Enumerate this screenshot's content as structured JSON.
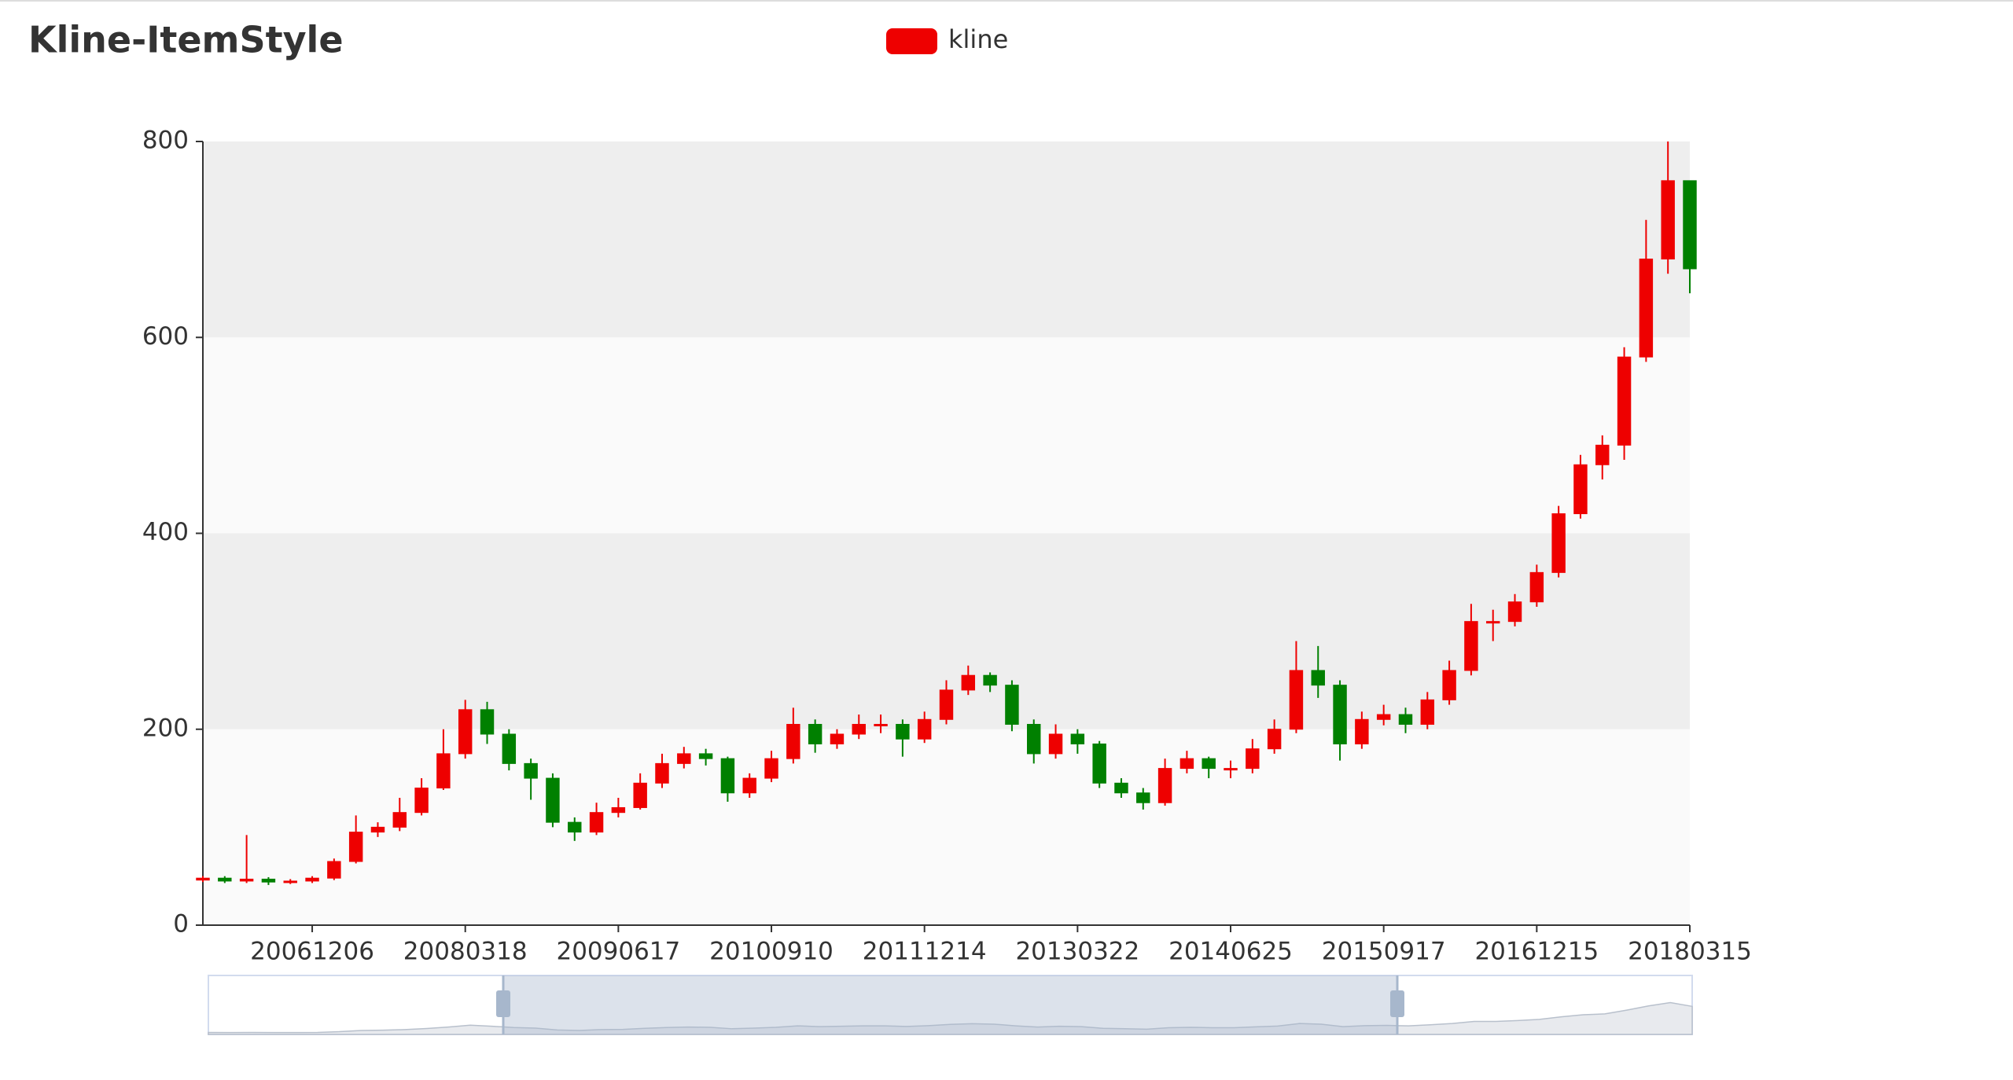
{
  "chart_data": {
    "type": "candlestick",
    "title": "Kline-ItemStyle",
    "categories": [
      null,
      null,
      null,
      null,
      null,
      "20061206",
      null,
      null,
      null,
      null,
      null,
      null,
      "20080318",
      null,
      null,
      null,
      null,
      null,
      null,
      "20090617",
      null,
      null,
      null,
      null,
      null,
      null,
      "20100910",
      null,
      null,
      null,
      null,
      null,
      null,
      "20111214",
      null,
      null,
      null,
      null,
      null,
      null,
      "20130322",
      null,
      null,
      null,
      null,
      null,
      null,
      "20140625",
      null,
      null,
      null,
      null,
      null,
      null,
      "20150917",
      null,
      null,
      null,
      null,
      null,
      null,
      "20161215",
      null,
      null,
      null,
      null,
      null,
      null,
      "20180315"
    ],
    "series": [
      {
        "name": "kline",
        "color": "#ee0000",
        "down_color": "#008000",
        "values": [
          [
            46,
            48,
            44,
            50
          ],
          [
            48,
            45,
            43,
            50
          ],
          [
            45,
            47,
            43,
            92
          ],
          [
            47,
            44,
            41,
            49
          ],
          [
            44,
            45,
            42,
            47
          ],
          [
            45,
            48,
            43,
            50
          ],
          [
            48,
            65,
            46,
            68
          ],
          [
            65,
            95,
            63,
            112
          ],
          [
            95,
            100,
            90,
            105
          ],
          [
            100,
            115,
            96,
            130
          ],
          [
            115,
            140,
            112,
            150
          ],
          [
            140,
            175,
            138,
            200
          ],
          [
            175,
            220,
            170,
            230
          ],
          [
            220,
            195,
            185,
            228
          ],
          [
            195,
            165,
            158,
            200
          ],
          [
            165,
            150,
            128,
            170
          ],
          [
            150,
            105,
            100,
            155
          ],
          [
            105,
            95,
            86,
            110
          ],
          [
            95,
            115,
            92,
            125
          ],
          [
            115,
            120,
            110,
            130
          ],
          [
            120,
            145,
            118,
            155
          ],
          [
            145,
            165,
            140,
            175
          ],
          [
            165,
            175,
            160,
            182
          ],
          [
            175,
            170,
            163,
            180
          ],
          [
            170,
            135,
            126,
            172
          ],
          [
            135,
            150,
            130,
            155
          ],
          [
            150,
            170,
            146,
            178
          ],
          [
            170,
            205,
            165,
            222
          ],
          [
            205,
            185,
            176,
            210
          ],
          [
            185,
            195,
            180,
            200
          ],
          [
            195,
            205,
            190,
            215
          ],
          [
            205,
            205,
            196,
            215
          ],
          [
            205,
            190,
            172,
            210
          ],
          [
            190,
            210,
            186,
            218
          ],
          [
            210,
            240,
            205,
            250
          ],
          [
            240,
            255,
            235,
            265
          ],
          [
            255,
            245,
            238,
            258
          ],
          [
            245,
            205,
            198,
            250
          ],
          [
            205,
            175,
            165,
            210
          ],
          [
            175,
            195,
            170,
            205
          ],
          [
            195,
            185,
            175,
            200
          ],
          [
            185,
            145,
            140,
            188
          ],
          [
            145,
            135,
            130,
            150
          ],
          [
            135,
            125,
            118,
            140
          ],
          [
            125,
            160,
            122,
            170
          ],
          [
            160,
            170,
            155,
            178
          ],
          [
            170,
            160,
            150,
            172
          ],
          [
            160,
            160,
            150,
            168
          ],
          [
            160,
            180,
            155,
            190
          ],
          [
            180,
            200,
            175,
            210
          ],
          [
            200,
            260,
            196,
            290
          ],
          [
            260,
            245,
            232,
            285
          ],
          [
            245,
            185,
            168,
            250
          ],
          [
            185,
            210,
            180,
            218
          ],
          [
            210,
            215,
            204,
            225
          ],
          [
            215,
            205,
            196,
            222
          ],
          [
            205,
            230,
            200,
            238
          ],
          [
            230,
            260,
            225,
            270
          ],
          [
            260,
            310,
            255,
            328
          ],
          [
            310,
            310,
            290,
            322
          ],
          [
            310,
            330,
            305,
            338
          ],
          [
            330,
            360,
            325,
            368
          ],
          [
            360,
            420,
            355,
            428
          ],
          [
            420,
            470,
            415,
            480
          ],
          [
            470,
            490,
            455,
            500
          ],
          [
            490,
            580,
            475,
            590
          ],
          [
            580,
            680,
            575,
            720
          ],
          [
            680,
            760,
            665,
            800
          ],
          [
            760,
            670,
            645,
            760
          ]
        ]
      }
    ],
    "ylim": [
      0,
      800
    ],
    "yticks": [
      0,
      200,
      400,
      600,
      800
    ],
    "split_area_colors": [
      "#fafafa",
      "#eeeeee"
    ]
  }
}
